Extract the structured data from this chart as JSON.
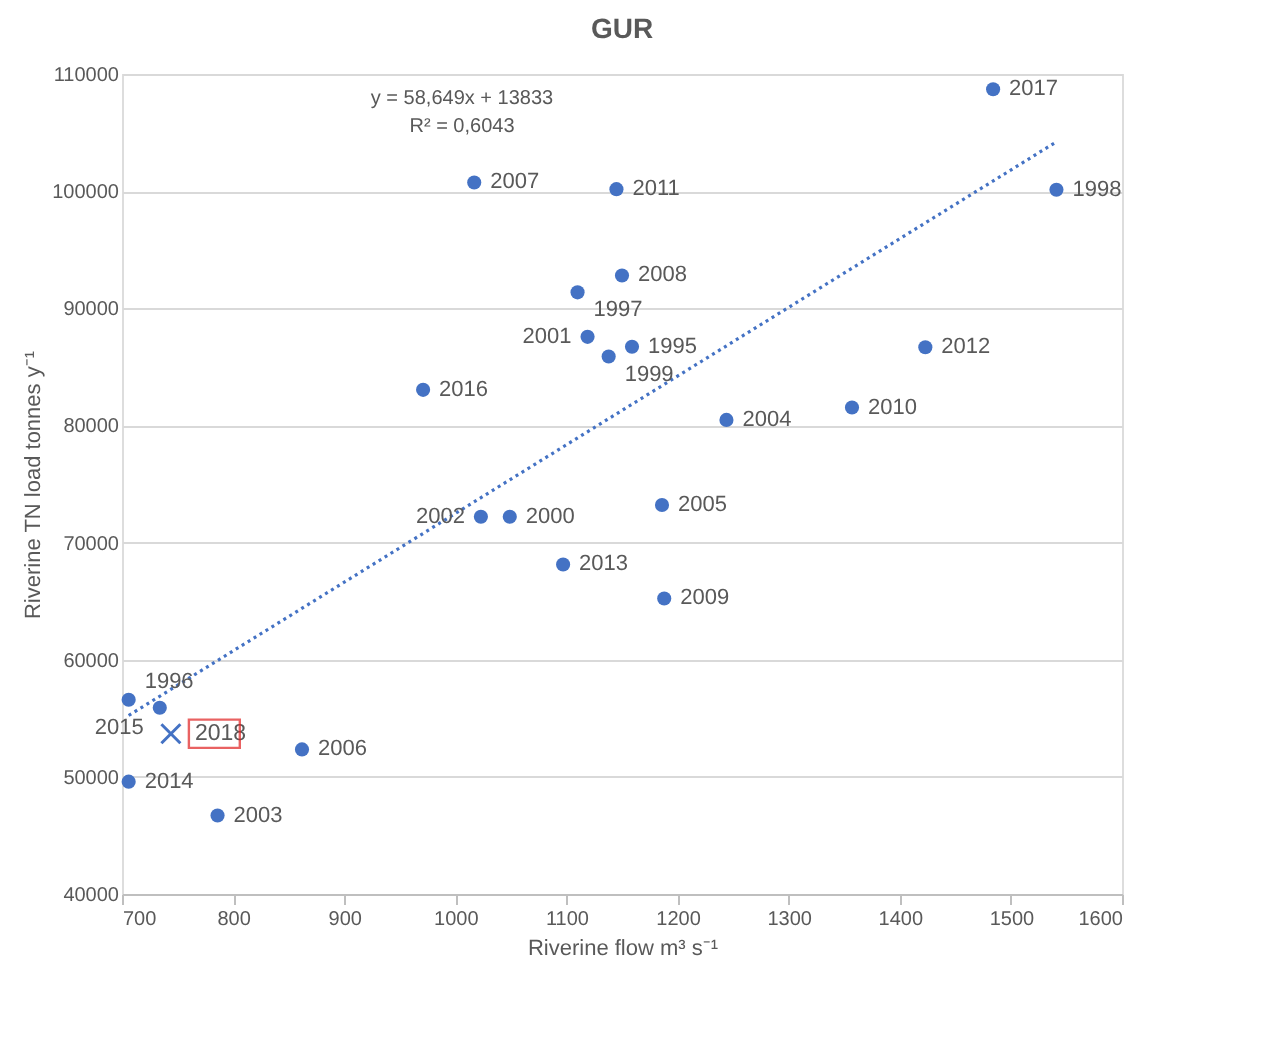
{
  "chart_data": {
    "type": "scatter",
    "title": "GUR",
    "xlabel": "Riverine flow m³ s⁻¹",
    "ylabel": "Riverine TN load tonnes y⁻¹",
    "xlim": [
      700,
      1600
    ],
    "xticks": [
      700,
      800,
      900,
      1000,
      1100,
      1200,
      1300,
      1400,
      1500,
      1600
    ],
    "ylim": [
      40000,
      110000
    ],
    "yticks": [
      40000,
      50000,
      60000,
      70000,
      80000,
      90000,
      100000,
      110000
    ],
    "grid": "y",
    "legend": false,
    "series": [
      {
        "marker": "circle",
        "color": "#4472c4",
        "x": [
          1017,
          1145,
          1150,
          1110,
          1119,
          1159,
          1138,
          971,
          1023,
          1049,
          1484,
          1541,
          1423,
          1357,
          1244,
          1186,
          1188,
          1097,
          706,
          734,
          862,
          706,
          786
        ],
        "values": [
          100740,
          100170,
          92800,
          91360,
          87560,
          86720,
          85880,
          83040,
          72200,
          72200,
          108700,
          100120,
          86670,
          81530,
          80470,
          73210,
          65230,
          68130,
          56580,
          55900,
          52340,
          49590,
          46700
        ]
      },
      {
        "marker": "cross",
        "name": "2018",
        "color": "#4472c4",
        "x": [
          744
        ],
        "values": [
          53680
        ]
      },
      {
        "type": "line",
        "line_style": "dotted",
        "color": "#4472c4",
        "x": [
          706,
          1541
        ],
        "values": [
          55239,
          104211
        ]
      }
    ],
    "annotations": [
      "y = 58,649x + 13833",
      "R² = 0,6043",
      {
        "text": "2007",
        "x": 1017,
        "y": 100740
      },
      {
        "text": "2011",
        "x": 1145,
        "y": 100170
      },
      {
        "text": "2008",
        "x": 1150,
        "y": 92800
      },
      {
        "text": "1997",
        "x": 1110,
        "y": 91360
      },
      {
        "text": "2001",
        "x": 1119,
        "y": 87560
      },
      {
        "text": "1995",
        "x": 1159,
        "y": 86720
      },
      {
        "text": "1999",
        "x": 1138,
        "y": 85880
      },
      {
        "text": "2016",
        "x": 971,
        "y": 83040
      },
      {
        "text": "2002",
        "x": 1023,
        "y": 72200
      },
      {
        "text": "2000",
        "x": 1049,
        "y": 72200
      },
      {
        "text": "2017",
        "x": 1484,
        "y": 108700
      },
      {
        "text": "1998",
        "x": 1541,
        "y": 100120
      },
      {
        "text": "2012",
        "x": 1423,
        "y": 86670
      },
      {
        "text": "2010",
        "x": 1357,
        "y": 81530
      },
      {
        "text": "2004",
        "x": 1244,
        "y": 80470
      },
      {
        "text": "2005",
        "x": 1186,
        "y": 73210
      },
      {
        "text": "2009",
        "x": 1188,
        "y": 65230
      },
      {
        "text": "2013",
        "x": 1097,
        "y": 68130
      },
      {
        "text": "1996",
        "x": 706,
        "y": 56580
      },
      {
        "text": "2015",
        "x": 734,
        "y": 55900
      },
      {
        "text": "2006",
        "x": 862,
        "y": 52340
      },
      {
        "text": "2014",
        "x": 706,
        "y": 49590
      },
      {
        "text": "2003",
        "x": 786,
        "y": 46700
      }
    ]
  }
}
